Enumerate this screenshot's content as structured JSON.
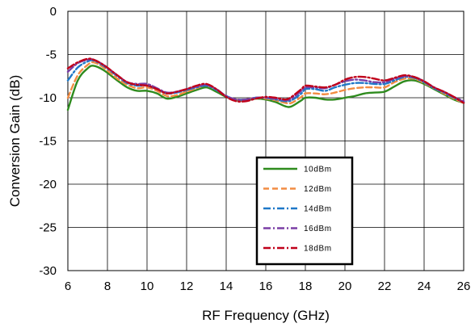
{
  "chart_data": {
    "type": "line",
    "xlabel": "RF Frequency (GHz)",
    "ylabel": "Conversion Gain (dB)",
    "xlim": [
      6,
      26
    ],
    "ylim": [
      -30,
      0
    ],
    "xticks": [
      6,
      8,
      10,
      12,
      14,
      16,
      18,
      20,
      22,
      24,
      26
    ],
    "yticks": [
      0,
      -5,
      -10,
      -15,
      -20,
      -25,
      -30
    ],
    "grid": true,
    "legend_position": "bottom-center inside plot",
    "series": [
      {
        "name": "10dBm",
        "color": "#2e8b1e",
        "dash": "solid",
        "points": [
          [
            6,
            -11.4
          ],
          [
            6.5,
            -8.0
          ],
          [
            7,
            -6.6
          ],
          [
            7.3,
            -6.3
          ],
          [
            7.8,
            -6.8
          ],
          [
            8.5,
            -8.0
          ],
          [
            9,
            -8.8
          ],
          [
            9.5,
            -9.2
          ],
          [
            10,
            -9.2
          ],
          [
            10.5,
            -9.5
          ],
          [
            11,
            -10.1
          ],
          [
            11.5,
            -9.9
          ],
          [
            12,
            -9.5
          ],
          [
            12.5,
            -9.1
          ],
          [
            13,
            -8.8
          ],
          [
            13.5,
            -9.3
          ],
          [
            14,
            -9.9
          ],
          [
            14.5,
            -10.3
          ],
          [
            15,
            -10.3
          ],
          [
            15.5,
            -10.1
          ],
          [
            16,
            -10.2
          ],
          [
            16.5,
            -10.5
          ],
          [
            17,
            -11.0
          ],
          [
            17.3,
            -11.0
          ],
          [
            17.8,
            -10.3
          ],
          [
            18,
            -10.0
          ],
          [
            18.5,
            -10.0
          ],
          [
            19,
            -10.2
          ],
          [
            19.5,
            -10.2
          ],
          [
            20,
            -10.0
          ],
          [
            20.5,
            -9.8
          ],
          [
            21,
            -9.5
          ],
          [
            21.5,
            -9.4
          ],
          [
            22,
            -9.3
          ],
          [
            22.5,
            -8.7
          ],
          [
            23,
            -8.1
          ],
          [
            23.5,
            -8.0
          ],
          [
            24,
            -8.4
          ],
          [
            24.5,
            -9.0
          ],
          [
            25,
            -9.6
          ],
          [
            25.5,
            -10.2
          ],
          [
            26,
            -10.6
          ]
        ]
      },
      {
        "name": "12dBm",
        "color": "#f28c42",
        "dash": "dash",
        "points": [
          [
            6,
            -10.0
          ],
          [
            6.5,
            -7.4
          ],
          [
            7,
            -6.2
          ],
          [
            7.3,
            -5.9
          ],
          [
            7.8,
            -6.5
          ],
          [
            8.5,
            -7.8
          ],
          [
            9,
            -8.5
          ],
          [
            9.5,
            -8.9
          ],
          [
            10,
            -8.8
          ],
          [
            10.5,
            -9.2
          ],
          [
            11,
            -9.8
          ],
          [
            11.5,
            -9.7
          ],
          [
            12,
            -9.3
          ],
          [
            12.5,
            -8.9
          ],
          [
            13,
            -8.6
          ],
          [
            13.5,
            -9.1
          ],
          [
            14,
            -9.8
          ],
          [
            14.5,
            -10.2
          ],
          [
            15,
            -10.2
          ],
          [
            15.5,
            -10.0
          ],
          [
            16,
            -10.1
          ],
          [
            16.5,
            -10.3
          ],
          [
            17,
            -10.6
          ],
          [
            17.3,
            -10.6
          ],
          [
            17.8,
            -9.9
          ],
          [
            18,
            -9.5
          ],
          [
            18.5,
            -9.5
          ],
          [
            19,
            -9.6
          ],
          [
            19.5,
            -9.4
          ],
          [
            20,
            -9.1
          ],
          [
            20.5,
            -8.9
          ],
          [
            21,
            -8.8
          ],
          [
            21.5,
            -8.8
          ],
          [
            22,
            -8.8
          ],
          [
            22.5,
            -8.2
          ],
          [
            23,
            -7.8
          ],
          [
            23.5,
            -7.8
          ],
          [
            24,
            -8.3
          ],
          [
            24.5,
            -8.9
          ],
          [
            25,
            -9.5
          ],
          [
            25.5,
            -10.1
          ],
          [
            26,
            -10.6
          ]
        ]
      },
      {
        "name": "14dBm",
        "color": "#1f78c8",
        "dash": "dashdot",
        "points": [
          [
            6,
            -8.0
          ],
          [
            6.5,
            -6.5
          ],
          [
            7,
            -5.8
          ],
          [
            7.3,
            -5.7
          ],
          [
            7.8,
            -6.3
          ],
          [
            8.5,
            -7.5
          ],
          [
            9,
            -8.3
          ],
          [
            9.5,
            -8.6
          ],
          [
            10,
            -8.6
          ],
          [
            10.5,
            -9.0
          ],
          [
            11,
            -9.5
          ],
          [
            11.5,
            -9.4
          ],
          [
            12,
            -9.1
          ],
          [
            12.5,
            -8.8
          ],
          [
            13,
            -8.6
          ],
          [
            13.5,
            -9.1
          ],
          [
            14,
            -9.8
          ],
          [
            14.5,
            -10.2
          ],
          [
            15,
            -10.2
          ],
          [
            15.5,
            -10.0
          ],
          [
            16,
            -10.0
          ],
          [
            16.5,
            -10.2
          ],
          [
            17,
            -10.4
          ],
          [
            17.3,
            -10.3
          ],
          [
            17.8,
            -9.5
          ],
          [
            18,
            -9.0
          ],
          [
            18.5,
            -9.0
          ],
          [
            19,
            -9.2
          ],
          [
            19.5,
            -8.8
          ],
          [
            20,
            -8.5
          ],
          [
            20.5,
            -8.3
          ],
          [
            21,
            -8.3
          ],
          [
            21.5,
            -8.4
          ],
          [
            22,
            -8.4
          ],
          [
            22.5,
            -8.0
          ],
          [
            23,
            -7.6
          ],
          [
            23.5,
            -7.7
          ],
          [
            24,
            -8.2
          ],
          [
            24.5,
            -8.9
          ],
          [
            25,
            -9.4
          ],
          [
            25.5,
            -10.0
          ],
          [
            26,
            -10.5
          ]
        ]
      },
      {
        "name": "16dBm",
        "color": "#7b3fa6",
        "dash": "dashdot",
        "points": [
          [
            6,
            -7.0
          ],
          [
            6.5,
            -6.0
          ],
          [
            7,
            -5.6
          ],
          [
            7.3,
            -5.6
          ],
          [
            7.8,
            -6.2
          ],
          [
            8.5,
            -7.4
          ],
          [
            9,
            -8.2
          ],
          [
            9.5,
            -8.4
          ],
          [
            10,
            -8.4
          ],
          [
            10.5,
            -8.9
          ],
          [
            11,
            -9.4
          ],
          [
            11.5,
            -9.3
          ],
          [
            12,
            -9.0
          ],
          [
            12.5,
            -8.7
          ],
          [
            13,
            -8.5
          ],
          [
            13.5,
            -9.0
          ],
          [
            14,
            -9.8
          ],
          [
            14.5,
            -10.2
          ],
          [
            15,
            -10.2
          ],
          [
            15.5,
            -10.0
          ],
          [
            16,
            -10.0
          ],
          [
            16.5,
            -10.1
          ],
          [
            17,
            -10.3
          ],
          [
            17.3,
            -10.1
          ],
          [
            17.8,
            -9.2
          ],
          [
            18,
            -8.8
          ],
          [
            18.5,
            -8.8
          ],
          [
            19,
            -8.9
          ],
          [
            19.5,
            -8.5
          ],
          [
            20,
            -8.1
          ],
          [
            20.5,
            -7.9
          ],
          [
            21,
            -8.0
          ],
          [
            21.5,
            -8.2
          ],
          [
            22,
            -8.2
          ],
          [
            22.5,
            -7.8
          ],
          [
            23,
            -7.5
          ],
          [
            23.5,
            -7.6
          ],
          [
            24,
            -8.1
          ],
          [
            24.5,
            -8.8
          ],
          [
            25,
            -9.3
          ],
          [
            25.5,
            -9.9
          ],
          [
            26,
            -10.4
          ]
        ]
      },
      {
        "name": "18dBm",
        "color": "#c0001a",
        "dash": "dashdot",
        "points": [
          [
            6,
            -6.6
          ],
          [
            6.5,
            -5.9
          ],
          [
            7,
            -5.5
          ],
          [
            7.3,
            -5.6
          ],
          [
            7.8,
            -6.2
          ],
          [
            8.5,
            -7.4
          ],
          [
            9,
            -8.2
          ],
          [
            9.5,
            -8.5
          ],
          [
            10,
            -8.6
          ],
          [
            10.5,
            -9.0
          ],
          [
            11,
            -9.5
          ],
          [
            11.5,
            -9.3
          ],
          [
            12,
            -9.0
          ],
          [
            12.5,
            -8.6
          ],
          [
            13,
            -8.4
          ],
          [
            13.5,
            -9.0
          ],
          [
            14,
            -9.9
          ],
          [
            14.5,
            -10.4
          ],
          [
            15,
            -10.4
          ],
          [
            15.5,
            -10.1
          ],
          [
            16,
            -9.9
          ],
          [
            16.5,
            -10.0
          ],
          [
            17,
            -10.2
          ],
          [
            17.3,
            -9.9
          ],
          [
            17.8,
            -9.0
          ],
          [
            18,
            -8.6
          ],
          [
            18.5,
            -8.7
          ],
          [
            19,
            -8.8
          ],
          [
            19.5,
            -8.5
          ],
          [
            20,
            -7.9
          ],
          [
            20.5,
            -7.6
          ],
          [
            21,
            -7.6
          ],
          [
            21.5,
            -7.8
          ],
          [
            22,
            -8.0
          ],
          [
            22.5,
            -7.7
          ],
          [
            23,
            -7.4
          ],
          [
            23.5,
            -7.6
          ],
          [
            24,
            -8.1
          ],
          [
            24.5,
            -8.8
          ],
          [
            25,
            -9.3
          ],
          [
            25.5,
            -9.9
          ],
          [
            26,
            -10.6
          ]
        ]
      }
    ]
  }
}
